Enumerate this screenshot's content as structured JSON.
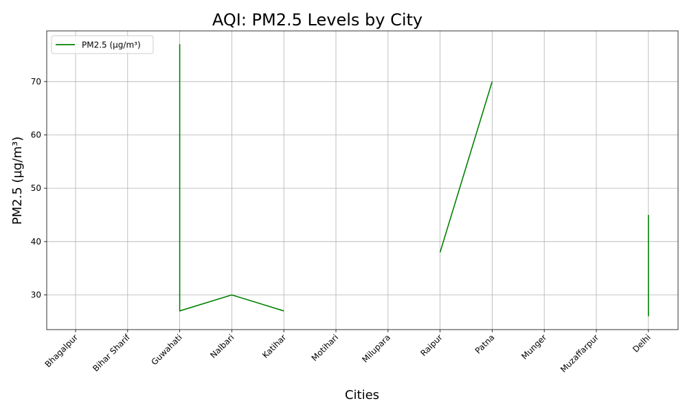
{
  "chart_data": {
    "type": "line",
    "title": "AQI: PM2.5 Levels by City",
    "xlabel": "Cities",
    "ylabel": "PM2.5 (µg/m³)",
    "categories": [
      "Bhagalpur",
      "Bihar Sharif",
      "Guwahati",
      "Nalbari",
      "Katihar",
      "Motihari",
      "Milupara",
      "Raipur",
      "Patna",
      "Munger",
      "Muzaffarpur",
      "Delhi"
    ],
    "ylim": [
      23.5,
      79.5
    ],
    "yticks": [
      30,
      40,
      50,
      60,
      70
    ],
    "grid": true,
    "legend_position": "top-left",
    "series": [
      {
        "name": "PM2.5 (µg/m³)",
        "color": "#008000",
        "points": [
          {
            "x": "Guwahati",
            "y": 77
          },
          {
            "x": "Guwahati",
            "y": 27
          },
          {
            "x": "Nalbari",
            "y": 30
          },
          {
            "x": "Katihar",
            "y": 27
          },
          {
            "x": "Katihar",
            "y": null
          },
          {
            "x": "Raipur",
            "y": 38
          },
          {
            "x": "Patna",
            "y": 70
          },
          {
            "x": "Patna",
            "y": null
          },
          {
            "x": "Delhi",
            "y": 45
          },
          {
            "x": "Delhi",
            "y": 26
          }
        ]
      }
    ]
  }
}
